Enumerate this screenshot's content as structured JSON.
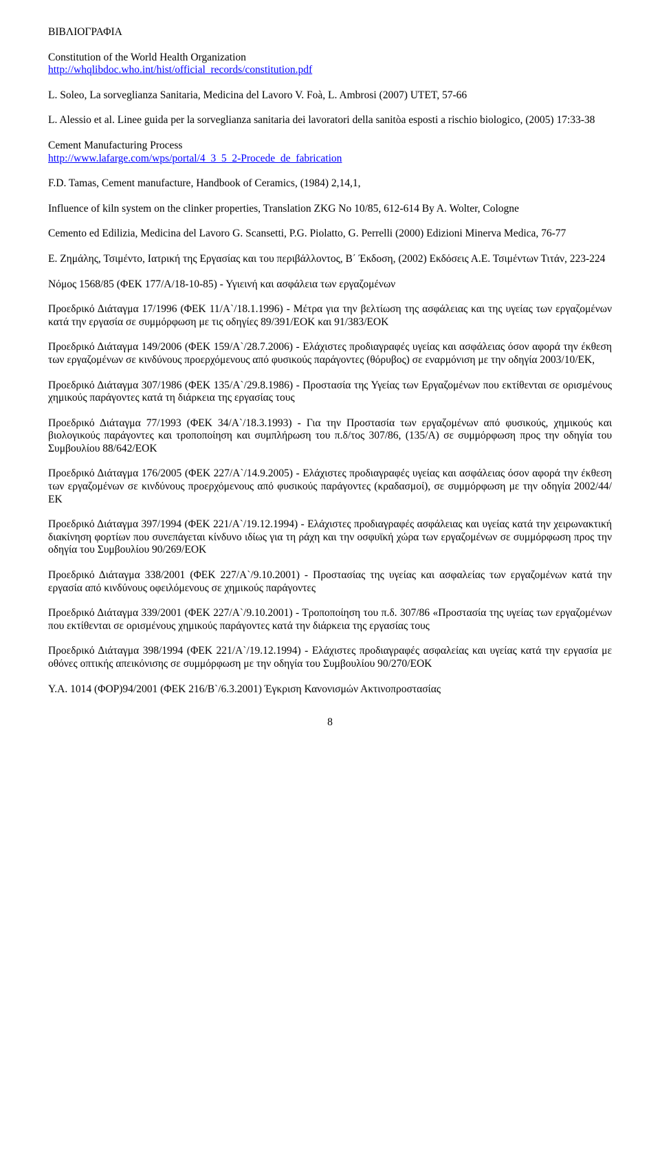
{
  "title": "ΒΙΒΛΙΟΓΡΑΦΙΑ",
  "entries": [
    {
      "lines": [
        {
          "text": "Constitution of the World Health Organization"
        },
        {
          "text": "http://whqlibdoc.who.int/hist/official_records/constitution.pdf",
          "link": true
        }
      ]
    },
    {
      "lines": [
        {
          "text": "L. Soleo, La sorveglianza Sanitaria, Medicina del Lavoro V. Foà, L. Ambrosi (2007) UTET, 57-66"
        }
      ]
    },
    {
      "lines": [
        {
          "text": "L. Alessio et al. Linee guida per la sorveglianza sanitaria dei lavoratori della sanitòa esposti a rischio biologico, (2005) 17:33-38"
        }
      ]
    },
    {
      "lines": [
        {
          "text": "Cement Manufacturing Process"
        },
        {
          "text": "http://www.lafarge.com/wps/portal/4_3_5_2-Procede_de_fabrication",
          "link": true
        }
      ]
    },
    {
      "lines": [
        {
          "text": "F.D. Tamas, Cement manufacture, Handbook of Ceramics, (1984) 2,14,1,"
        }
      ]
    },
    {
      "lines": [
        {
          "text": "Influence of kiln system on the clinker properties, Translation ZKG No 10/85, 612-614 By A. Wolter, Cologne"
        }
      ]
    },
    {
      "lines": [
        {
          "text": "Cemento ed Edilizia, Medicina del Lavoro G. Scansetti, P.G. Piolatto, G. Perrelli (2000) Edizioni Minerva Medica, 76-77"
        }
      ]
    },
    {
      "lines": [
        {
          "text": "Ε. Ζημάλης, Τσιμέντο, Ιατρική της Εργασίας και του περιβάλλοντος, Β΄ Έκδοση, (2002) Εκδόσεις Α.Ε. Τσιμέντων Τιτάν, 223-224"
        }
      ]
    },
    {
      "lines": [
        {
          "text": "Νόμος 1568/85 (ΦΕΚ 177/Α/18-10-85) - Υγιεινή και ασφάλεια των εργαζομένων"
        }
      ]
    },
    {
      "lines": [
        {
          "text": "Προεδρικό Διάταγμα 17/1996 (ΦΕΚ 11/Α`/18.1.1996) - Μέτρα για την βελτίωση της ασφάλειας και της υγείας των εργαζομένων κατά την εργασία σε συμμόρφωση με τις οδηγίες 89/391/ΕΟΚ και 91/383/ΕΟΚ"
        }
      ]
    },
    {
      "lines": [
        {
          "text": "Προεδρικό Διάταγμα 149/2006 (ΦΕΚ 159/Α`/28.7.2006) - Ελάχιστες προδιαγραφές υγείας και ασφάλειας όσον αφορά την έκθεση των εργαζομένων σε κινδύνους προερχόμενους από φυσικούς παράγοντες (θόρυβος) σε εναρμόνιση με την οδηγία 2003/10/ΕΚ,"
        }
      ]
    },
    {
      "lines": [
        {
          "text": "Προεδρικό Διάταγμα 307/1986 (ΦΕΚ 135/Α`/29.8.1986) - Προστασία της Υγείας των Εργαζομένων που εκτίθενται σε ορισμένους χημικούς παράγοντες κατά τη διάρκεια της εργασίας τους"
        }
      ]
    },
    {
      "lines": [
        {
          "text": "Προεδρικό Διάταγμα 77/1993 (ΦΕΚ 34/Α`/18.3.1993) - Για την Προστασία των εργαζομένων από φυσικούς, χημικούς και βιολογικούς παράγοντες και τροποποίηση και συμπλήρωση του π.δ/τος 307/86, (135/Α) σε συμμόρφωση προς την οδηγία του Συμβουλίου 88/642/ΕΟΚ"
        }
      ]
    },
    {
      "lines": [
        {
          "text": "Προεδρικό Διάταγμα 176/2005 (ΦΕΚ 227/Α`/14.9.2005) - Ελάχιστες προδιαγραφές υγείας και ασφάλειας όσον αφορά την έκθεση των εργαζομένων σε κινδύνους προερχόμενους από φυσικούς παράγοντες (κραδασμοί), σε συμμόρφωση με την οδηγία 2002/44/ΕΚ"
        }
      ]
    },
    {
      "lines": [
        {
          "text": "Προεδρικό Διάταγμα 397/1994 (ΦΕΚ 221/Α`/19.12.1994) - Ελάχιστες προδιαγραφές ασφάλειας και υγείας κατά την χειρωνακτική διακίνηση φορτίων που συνεπάγεται κίνδυνο ιδίως για τη ράχη και την οσφυϊκή χώρα των εργαζομένων σε συμμόρφωση προς την οδηγία του Συμβουλίου 90/269/ΕΟΚ"
        }
      ]
    },
    {
      "lines": [
        {
          "text": "Προεδρικό Διάταγμα 338/2001 (ΦΕΚ 227/Α`/9.10.2001) - Προστασίας της υγείας και ασφαλείας των εργαζομένων κατά την εργασία από κινδύνους οφειλόμενους σε χημικούς παράγοντες"
        }
      ]
    },
    {
      "lines": [
        {
          "text": "Προεδρικό Διάταγμα 339/2001 (ΦΕΚ 227/Α`/9.10.2001) - Τροποποίηση του π.δ. 307/86 «Προστασία της υγείας των εργαζομένων που εκτίθενται σε ορισμένους χημικούς παράγοντες κατά την διάρκεια της εργασίας τους"
        }
      ]
    },
    {
      "lines": [
        {
          "text": "Προεδρικό Διάταγμα 398/1994 (ΦΕΚ 221/Α`/19.12.1994) - Ελάχιστες προδιαγραφές ασφαλείας και υγείας κατά την εργασία με οθόνες οπτικής απεικόνισης σε συμμόρφωση με την οδηγία του Συμβουλίου 90/270/ΕΟΚ"
        }
      ]
    },
    {
      "lines": [
        {
          "text": "Υ.Α. 1014 (ΦΟΡ)94/2001 (ΦΕΚ 216/Β`/6.3.2001) Έγκριση Κανονισμών Ακτινοπροστασίας"
        }
      ]
    }
  ],
  "page_number": "8"
}
